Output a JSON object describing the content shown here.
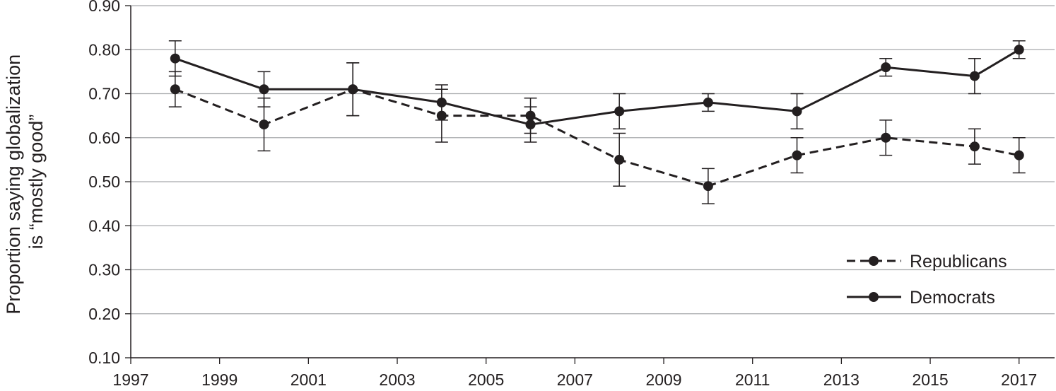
{
  "chart_data": {
    "type": "line",
    "title": "",
    "xlabel": "",
    "ylabel_lines": [
      "Proportion saying globalization",
      "is “mostly good”"
    ],
    "x_ticks": [
      "1997",
      "1999",
      "2001",
      "2003",
      "2005",
      "2007",
      "2009",
      "2011",
      "2013",
      "2015",
      "2017"
    ],
    "y_ticks": [
      "0.10",
      "0.20",
      "0.30",
      "0.40",
      "0.50",
      "0.60",
      "0.70",
      "0.80",
      "0.90"
    ],
    "xlim": [
      1997,
      2017.8
    ],
    "ylim": [
      0.1,
      0.9
    ],
    "grid": "horizontal",
    "legend_position": "bottom-right",
    "series": [
      {
        "name": "Republicans",
        "style": "dashed",
        "color": "#231f20",
        "points": [
          {
            "x": 1998,
            "y": 0.71,
            "err_low": 0.67,
            "err_high": 0.75
          },
          {
            "x": 2000,
            "y": 0.63,
            "err_low": 0.57,
            "err_high": 0.69
          },
          {
            "x": 2002,
            "y": 0.71,
            "err_low": 0.65,
            "err_high": 0.77
          },
          {
            "x": 2004,
            "y": 0.65,
            "err_low": 0.59,
            "err_high": 0.71
          },
          {
            "x": 2006,
            "y": 0.65,
            "err_low": 0.61,
            "err_high": 0.69
          },
          {
            "x": 2008,
            "y": 0.55,
            "err_low": 0.49,
            "err_high": 0.61
          },
          {
            "x": 2010,
            "y": 0.49,
            "err_low": 0.45,
            "err_high": 0.53
          },
          {
            "x": 2012,
            "y": 0.56,
            "err_low": 0.52,
            "err_high": 0.6
          },
          {
            "x": 2014,
            "y": 0.6,
            "err_low": 0.56,
            "err_high": 0.64
          },
          {
            "x": 2016,
            "y": 0.58,
            "err_low": 0.54,
            "err_high": 0.62
          },
          {
            "x": 2017,
            "y": 0.56,
            "err_low": 0.52,
            "err_high": 0.6
          }
        ]
      },
      {
        "name": "Democrats",
        "style": "solid",
        "color": "#231f20",
        "points": [
          {
            "x": 1998,
            "y": 0.78,
            "err_low": 0.74,
            "err_high": 0.82
          },
          {
            "x": 2000,
            "y": 0.71,
            "err_low": 0.67,
            "err_high": 0.75
          },
          {
            "x": 2002,
            "y": 0.71,
            "err_low": 0.65,
            "err_high": 0.77
          },
          {
            "x": 2004,
            "y": 0.68,
            "err_low": 0.64,
            "err_high": 0.72
          },
          {
            "x": 2006,
            "y": 0.63,
            "err_low": 0.59,
            "err_high": 0.67
          },
          {
            "x": 2008,
            "y": 0.66,
            "err_low": 0.62,
            "err_high": 0.7
          },
          {
            "x": 2010,
            "y": 0.68,
            "err_low": 0.66,
            "err_high": 0.7
          },
          {
            "x": 2012,
            "y": 0.66,
            "err_low": 0.62,
            "err_high": 0.7
          },
          {
            "x": 2014,
            "y": 0.76,
            "err_low": 0.74,
            "err_high": 0.78
          },
          {
            "x": 2016,
            "y": 0.74,
            "err_low": 0.7,
            "err_high": 0.78
          },
          {
            "x": 2017,
            "y": 0.8,
            "err_low": 0.78,
            "err_high": 0.82
          }
        ]
      }
    ]
  }
}
